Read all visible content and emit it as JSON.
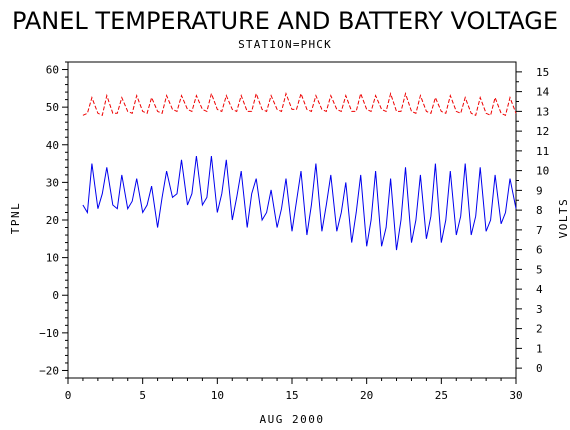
{
  "chart_data": {
    "type": "line",
    "title": "PANEL TEMPERATURE AND BATTERY VOLTAGE",
    "subtitle": "STATION=PHCK",
    "xlabel": "AUG 2000",
    "ylabel_left": "TPNL",
    "ylabel_right": "VOLTS",
    "xlim": [
      0,
      30
    ],
    "ylim_left": [
      -22,
      62
    ],
    "ylim_right": [
      -0.5,
      15.5
    ],
    "x_ticks": [
      "0",
      "5",
      "10",
      "15",
      "20",
      "25",
      "30"
    ],
    "y_left_ticks": [
      "60",
      "50",
      "40",
      "30",
      "20",
      "10",
      "0",
      "−10",
      "−20"
    ],
    "y_right_ticks": [
      "15",
      "14",
      "13",
      "12",
      "11",
      "10",
      "9",
      "8",
      "7",
      "6",
      "5",
      "4",
      "3",
      "2",
      "1",
      "0"
    ],
    "grid": false,
    "series": [
      {
        "axis": "left",
        "color": "#0000ee",
        "x": [
          1.0,
          1.3,
          1.6,
          2.0,
          2.3,
          2.6,
          3.0,
          3.3,
          3.6,
          4.0,
          4.3,
          4.6,
          5.0,
          5.3,
          5.6,
          6.0,
          6.3,
          6.6,
          7.0,
          7.3,
          7.6,
          8.0,
          8.3,
          8.6,
          9.0,
          9.3,
          9.6,
          10.0,
          10.3,
          10.6,
          11.0,
          11.3,
          11.6,
          12.0,
          12.3,
          12.6,
          13.0,
          13.3,
          13.6,
          14.0,
          14.3,
          14.6,
          15.0,
          15.3,
          15.6,
          16.0,
          16.3,
          16.6,
          17.0,
          17.3,
          17.6,
          18.0,
          18.3,
          18.6,
          19.0,
          19.3,
          19.6,
          20.0,
          20.3,
          20.6,
          21.0,
          21.3,
          21.6,
          22.0,
          22.3,
          22.6,
          23.0,
          23.3,
          23.6,
          24.0,
          24.3,
          24.6,
          25.0,
          25.3,
          25.6,
          26.0,
          26.3,
          26.6,
          27.0,
          27.3,
          27.6,
          28.0,
          28.3,
          28.6,
          29.0,
          29.3,
          29.6,
          30.0
        ],
        "values": [
          24,
          22,
          35,
          23,
          27,
          34,
          24,
          23,
          32,
          23,
          25,
          31,
          22,
          24,
          29,
          18,
          26,
          33,
          26,
          27,
          36,
          24,
          27,
          37,
          24,
          26,
          37,
          22,
          27,
          36,
          20,
          26,
          33,
          18,
          27,
          31,
          20,
          22,
          28,
          18,
          23,
          31,
          17,
          25,
          33,
          16,
          24,
          35,
          17,
          24,
          32,
          17,
          22,
          30,
          14,
          22,
          32,
          13,
          20,
          33,
          13,
          18,
          31,
          12,
          20,
          34,
          14,
          20,
          32,
          15,
          21,
          35,
          14,
          20,
          33,
          16,
          21,
          35,
          16,
          21,
          34,
          17,
          20,
          32,
          19,
          22,
          31,
          23
        ]
      },
      {
        "axis": "right",
        "color": "#ee0000",
        "x": [
          1.0,
          1.3,
          1.6,
          2.0,
          2.3,
          2.6,
          3.0,
          3.3,
          3.6,
          4.0,
          4.3,
          4.6,
          5.0,
          5.3,
          5.6,
          6.0,
          6.3,
          6.6,
          7.0,
          7.3,
          7.6,
          8.0,
          8.3,
          8.6,
          9.0,
          9.3,
          9.6,
          10.0,
          10.3,
          10.6,
          11.0,
          11.3,
          11.6,
          12.0,
          12.3,
          12.6,
          13.0,
          13.3,
          13.6,
          14.0,
          14.3,
          14.6,
          15.0,
          15.3,
          15.6,
          16.0,
          16.3,
          16.6,
          17.0,
          17.3,
          17.6,
          18.0,
          18.3,
          18.6,
          19.0,
          19.3,
          19.6,
          20.0,
          20.3,
          20.6,
          21.0,
          21.3,
          21.6,
          22.0,
          22.3,
          22.6,
          23.0,
          23.3,
          23.6,
          24.0,
          24.3,
          24.6,
          25.0,
          25.3,
          25.6,
          26.0,
          26.3,
          26.6,
          27.0,
          27.3,
          27.6,
          28.0,
          28.3,
          28.6,
          29.0,
          29.3,
          29.6,
          30.0
        ],
        "values": [
          12.8,
          12.9,
          13.7,
          12.9,
          12.8,
          13.8,
          12.9,
          12.9,
          13.7,
          13.0,
          12.9,
          13.8,
          13.0,
          12.9,
          13.7,
          13.0,
          12.9,
          13.8,
          13.1,
          13.0,
          13.8,
          13.1,
          13.0,
          13.8,
          13.1,
          13.0,
          13.9,
          13.1,
          13.0,
          13.8,
          13.1,
          13.0,
          13.8,
          13.0,
          13.0,
          13.9,
          13.1,
          13.0,
          13.8,
          13.1,
          13.0,
          13.9,
          13.1,
          13.1,
          13.9,
          13.1,
          13.0,
          13.8,
          13.1,
          13.0,
          13.8,
          13.1,
          13.0,
          13.8,
          13.0,
          13.0,
          13.9,
          13.1,
          13.0,
          13.8,
          13.1,
          13.0,
          13.9,
          13.0,
          13.0,
          13.9,
          13.0,
          12.9,
          13.8,
          13.0,
          12.9,
          13.7,
          13.0,
          12.9,
          13.8,
          13.0,
          12.9,
          13.7,
          12.9,
          12.8,
          13.7,
          12.9,
          12.8,
          13.7,
          12.9,
          12.8,
          13.7,
          12.9
        ]
      }
    ]
  }
}
